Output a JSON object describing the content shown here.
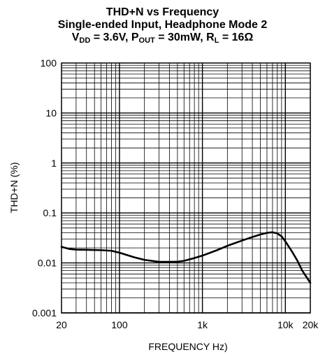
{
  "chart_data": {
    "type": "line",
    "title": "THD+N vs Frequency",
    "subtitle": "Single-ended Input, Headphone Mode 2",
    "conditions": {
      "vdd": {
        "symbol": "V",
        "sub": "DD",
        "value": " = 3.6V, "
      },
      "pout": {
        "symbol": "P",
        "sub": "OUT",
        "value": " = 30mW, "
      },
      "rl": {
        "symbol": "R",
        "sub": "L",
        "value": " = 16Ω"
      }
    },
    "xlabel": "FREQUENCY Hz)",
    "ylabel": "THD+N (%)",
    "xscale": "log",
    "yscale": "log",
    "xlim": [
      20,
      20000
    ],
    "ylim": [
      0.001,
      100
    ],
    "x_ticks": [
      {
        "value": 20,
        "label": "20"
      },
      {
        "value": 100,
        "label": "100"
      },
      {
        "value": 1000,
        "label": "1k"
      },
      {
        "value": 10000,
        "label": "10k"
      },
      {
        "value": 20000,
        "label": "20k"
      }
    ],
    "y_ticks": [
      {
        "value": 100,
        "label": "100"
      },
      {
        "value": 10,
        "label": "10"
      },
      {
        "value": 1,
        "label": "1"
      },
      {
        "value": 0.1,
        "label": "0.1"
      },
      {
        "value": 0.01,
        "label": "0.01"
      },
      {
        "value": 0.001,
        "label": "0.001"
      }
    ],
    "grid": true,
    "series": [
      {
        "color": "#000000",
        "x": [
          20,
          25,
          30,
          40,
          60,
          80,
          100,
          150,
          200,
          300,
          400,
          500,
          600,
          700,
          800,
          1000,
          1500,
          2000,
          3000,
          4000,
          5000,
          6000,
          7000,
          8000,
          9000,
          10000,
          12000,
          14000,
          16000,
          18000,
          20000
        ],
        "y": [
          0.021,
          0.019,
          0.0185,
          0.0183,
          0.018,
          0.0175,
          0.016,
          0.013,
          0.0115,
          0.0105,
          0.0105,
          0.0106,
          0.011,
          0.0118,
          0.0125,
          0.014,
          0.018,
          0.022,
          0.028,
          0.033,
          0.037,
          0.04,
          0.041,
          0.039,
          0.034,
          0.027,
          0.017,
          0.011,
          0.007,
          0.0052,
          0.004
        ]
      }
    ]
  }
}
